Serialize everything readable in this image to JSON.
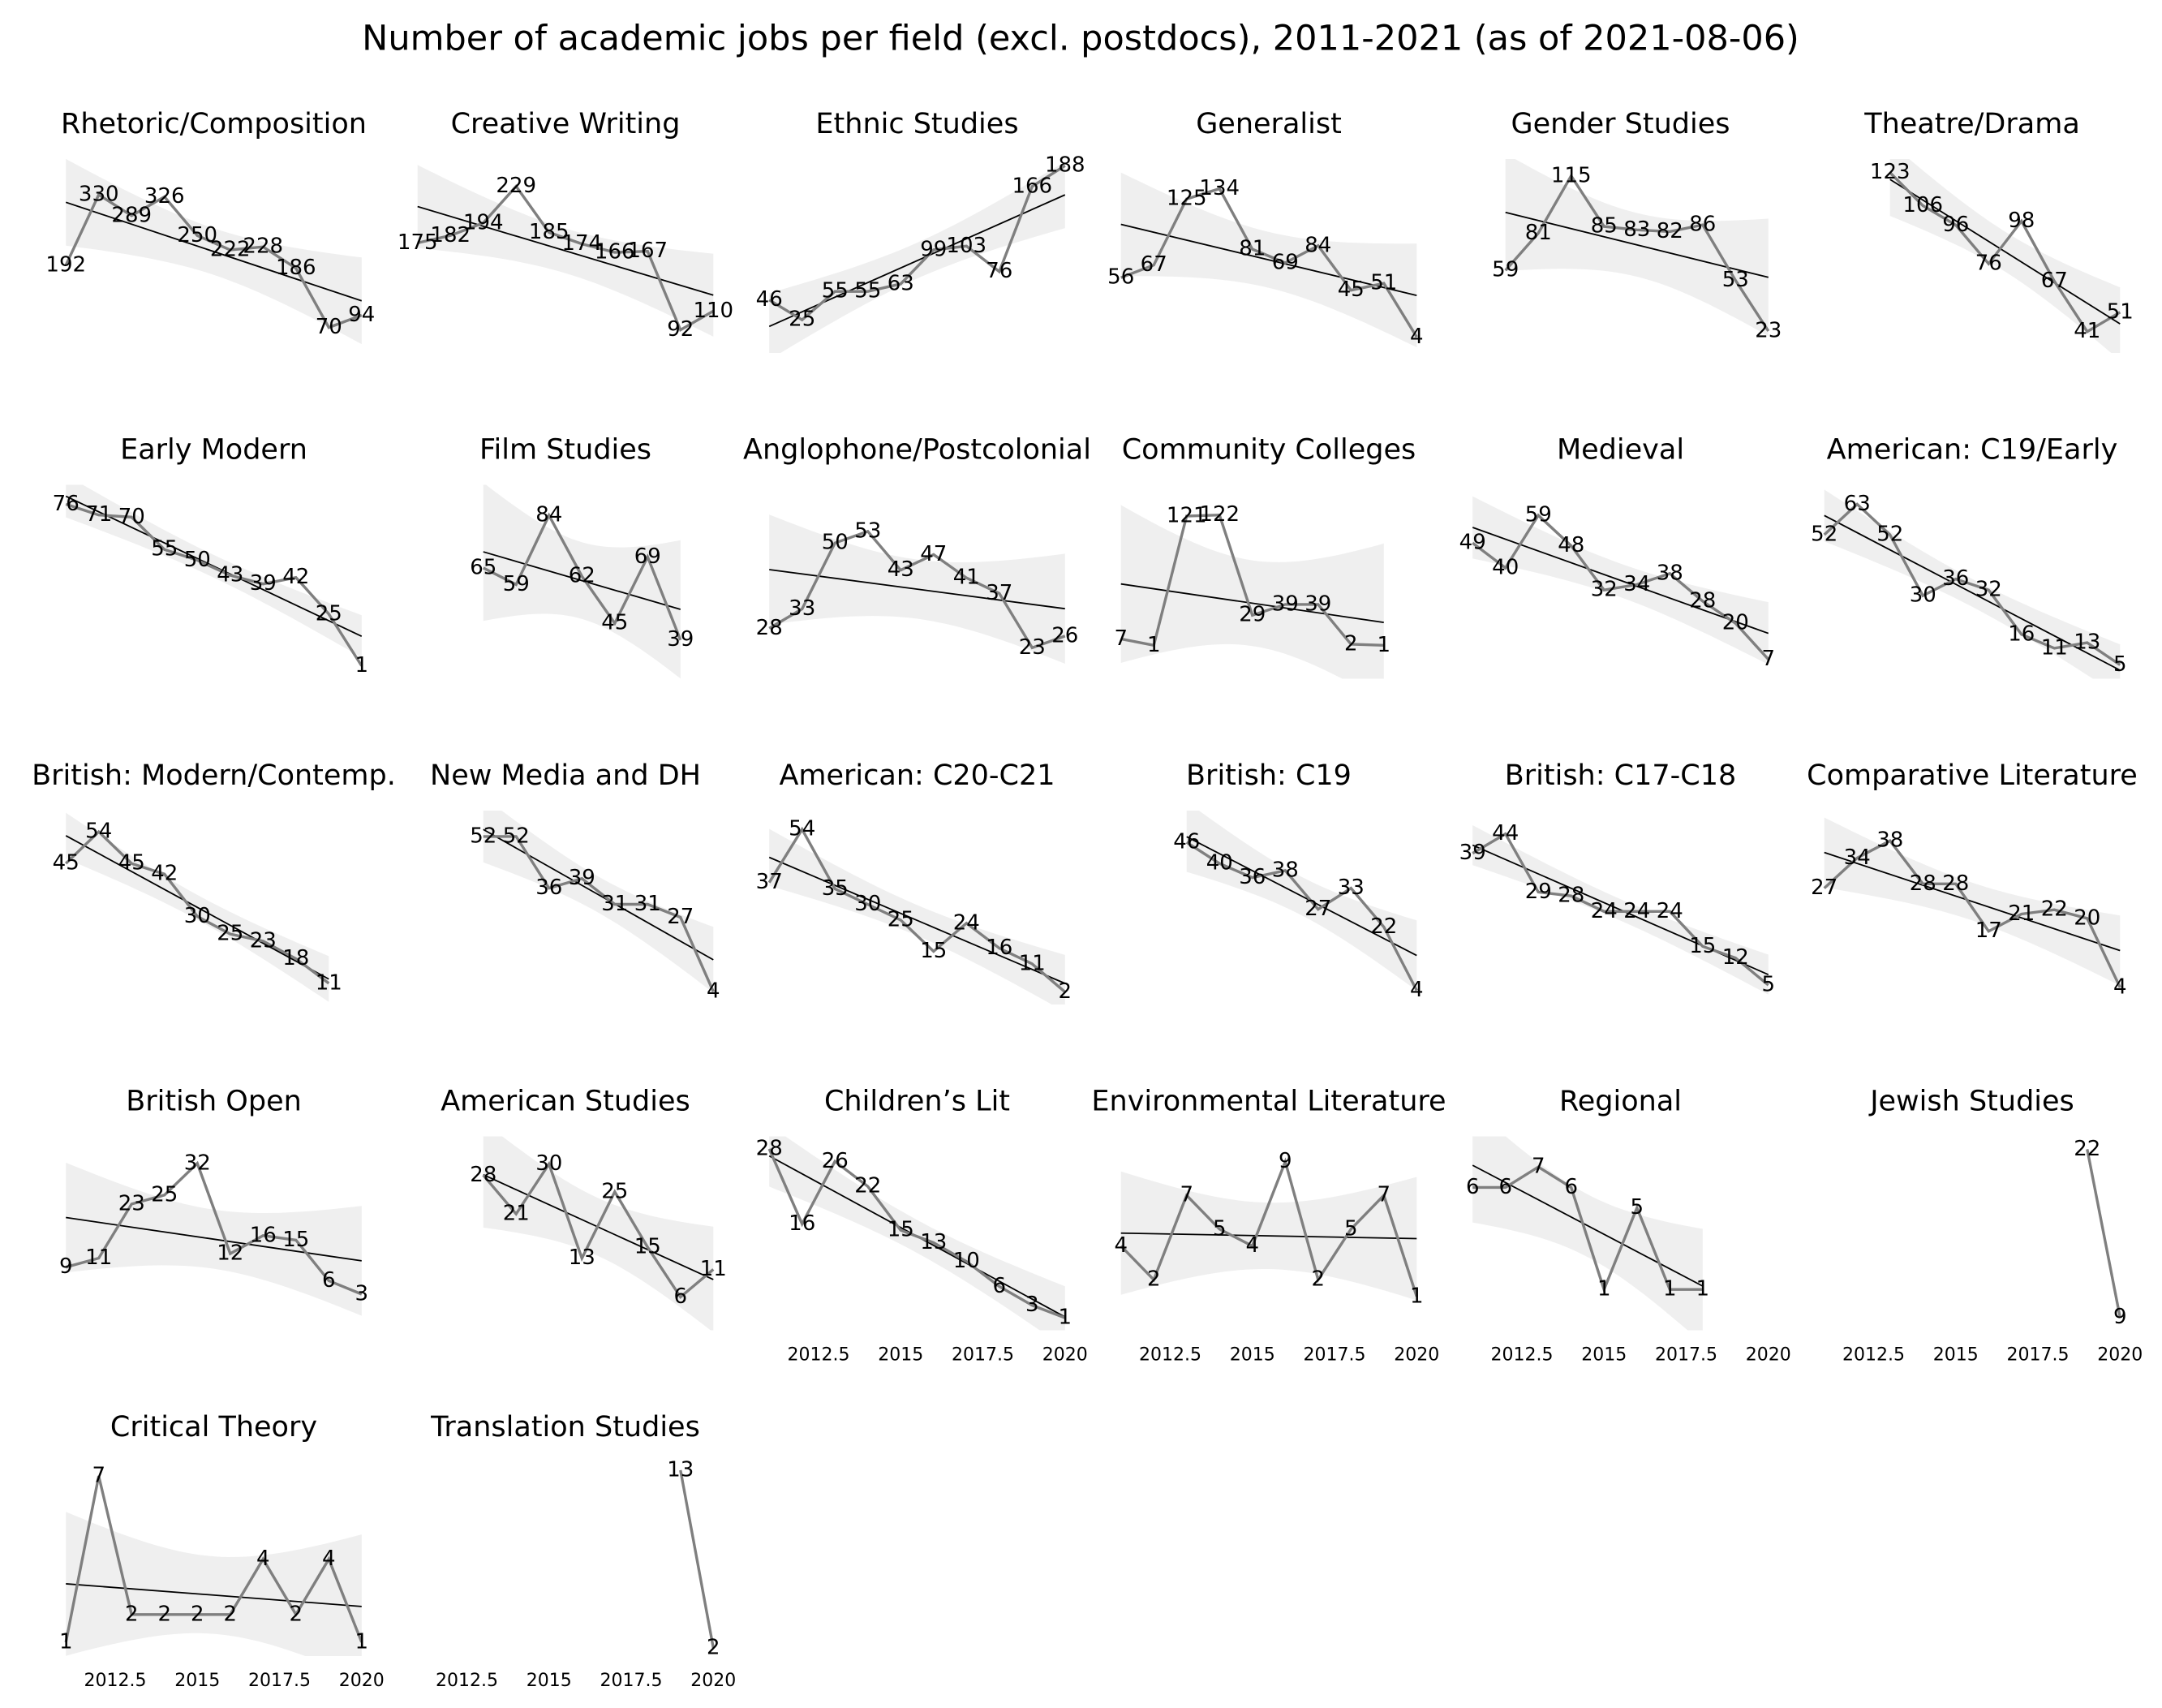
{
  "title": "Number of academic jobs per field (excl. postdocs), 2011-2021 (as of 2021-08-06)",
  "chart_data": [
    {
      "type": "line",
      "title": "Rhetoric/Composition",
      "x": [
        2011,
        2012,
        2013,
        2014,
        2015,
        2016,
        2017,
        2018,
        2019,
        2020
      ],
      "values": [
        192,
        330,
        289,
        326,
        250,
        222,
        228,
        186,
        70,
        94
      ],
      "xlim": [
        2010.55,
        2020.45
      ],
      "ylim": [
        20,
        400
      ],
      "color": "#7f7f7f",
      "fit": true
    },
    {
      "type": "line",
      "title": "Creative Writing",
      "x": [
        2011,
        2012,
        2013,
        2014,
        2015,
        2016,
        2017,
        2018,
        2019,
        2020
      ],
      "values": [
        175,
        182,
        194,
        229,
        185,
        174,
        166,
        167,
        92,
        110
      ],
      "xlim": [
        2010.55,
        2020.45
      ],
      "ylim": [
        70,
        255
      ],
      "color": "#7f7f7f",
      "fit": true
    },
    {
      "type": "line",
      "title": "Ethnic Studies",
      "x": [
        2011,
        2012,
        2013,
        2014,
        2015,
        2016,
        2017,
        2018,
        2019,
        2020
      ],
      "values": [
        46,
        25,
        55,
        55,
        63,
        99,
        103,
        76,
        166,
        188
      ],
      "xlim": [
        2010.55,
        2020.45
      ],
      "ylim": [
        -10,
        195
      ],
      "color": "#7f7f7f",
      "fit": true
    },
    {
      "type": "line",
      "title": "Generalist",
      "x": [
        2011,
        2012,
        2013,
        2014,
        2015,
        2016,
        2017,
        2018,
        2019,
        2020
      ],
      "values": [
        56,
        67,
        125,
        134,
        81,
        69,
        84,
        45,
        51,
        4
      ],
      "xlim": [
        2010.55,
        2020.45
      ],
      "ylim": [
        -10,
        160
      ],
      "color": "#7f7f7f",
      "fit": true
    },
    {
      "type": "line",
      "title": "Gender Studies",
      "x": [
        2012,
        2013,
        2014,
        2015,
        2016,
        2017,
        2018,
        2019,
        2020
      ],
      "values": [
        59,
        81,
        115,
        85,
        83,
        82,
        86,
        53,
        23
      ],
      "xlim": [
        2010.55,
        2020.45
      ],
      "ylim": [
        10,
        125
      ],
      "color": "#7f7f7f",
      "fit": true
    },
    {
      "type": "line",
      "title": "Theatre/Drama",
      "x": [
        2013,
        2014,
        2015,
        2016,
        2017,
        2018,
        2019,
        2020
      ],
      "values": [
        123,
        106,
        96,
        76,
        98,
        67,
        41,
        51
      ],
      "xlim": [
        2010.55,
        2020.45
      ],
      "ylim": [
        30,
        130
      ],
      "color": "#7f7f7f",
      "fit": true
    },
    {
      "type": "line",
      "title": "Early Modern",
      "x": [
        2011,
        2012,
        2013,
        2014,
        2015,
        2016,
        2017,
        2018,
        2019,
        2020
      ],
      "values": [
        76,
        71,
        70,
        55,
        50,
        43,
        39,
        42,
        25,
        1
      ],
      "xlim": [
        2010.55,
        2020.45
      ],
      "ylim": [
        -5,
        85
      ],
      "color": "#7f7f7f",
      "fit": true
    },
    {
      "type": "line",
      "title": "Film Studies",
      "x": [
        2013,
        2014,
        2015,
        2016,
        2017,
        2018,
        2019
      ],
      "values": [
        65,
        59,
        84,
        62,
        45,
        69,
        39
      ],
      "xlim": [
        2010.55,
        2020.45
      ],
      "ylim": [
        25,
        95
      ],
      "color": "#7f7f7f",
      "fit": true
    },
    {
      "type": "line",
      "title": "Anglophone/Postcolonial",
      "x": [
        2011,
        2012,
        2013,
        2014,
        2015,
        2016,
        2017,
        2018,
        2019,
        2020
      ],
      "values": [
        28,
        33,
        50,
        53,
        43,
        47,
        41,
        37,
        23,
        26
      ],
      "xlim": [
        2010.55,
        2020.45
      ],
      "ylim": [
        15,
        65
      ],
      "color": "#7f7f7f",
      "fit": true
    },
    {
      "type": "line",
      "title": "Community Colleges",
      "x": [
        2011,
        2012,
        2013,
        2014,
        2015,
        2016,
        2017,
        2018,
        2019
      ],
      "values": [
        7,
        1,
        121,
        122,
        29,
        39,
        39,
        2,
        1
      ],
      "xlim": [
        2010.55,
        2020.45
      ],
      "ylim": [
        -30,
        150
      ],
      "color": "#7f7f7f",
      "fit": true
    },
    {
      "type": "line",
      "title": "Medieval",
      "x": [
        2011,
        2012,
        2013,
        2014,
        2015,
        2016,
        2017,
        2018,
        2019,
        2020
      ],
      "values": [
        49,
        40,
        59,
        48,
        32,
        34,
        38,
        28,
        20,
        7
      ],
      "xlim": [
        2010.55,
        2020.45
      ],
      "ylim": [
        0,
        70
      ],
      "color": "#7f7f7f",
      "fit": true
    },
    {
      "type": "line",
      "title": "American: C19/Early",
      "x": [
        2011,
        2012,
        2013,
        2014,
        2015,
        2016,
        2017,
        2018,
        2019,
        2020
      ],
      "values": [
        52,
        63,
        52,
        30,
        36,
        32,
        16,
        11,
        13,
        5
      ],
      "xlim": [
        2010.55,
        2020.45
      ],
      "ylim": [
        0,
        70
      ],
      "color": "#7f7f7f",
      "fit": true
    },
    {
      "type": "line",
      "title": "British: Modern/Contemp.",
      "x": [
        2011,
        2012,
        2013,
        2014,
        2015,
        2016,
        2017,
        2018,
        2019
      ],
      "values": [
        45,
        54,
        45,
        42,
        30,
        25,
        23,
        18,
        11
      ],
      "xlim": [
        2010.55,
        2020.45
      ],
      "ylim": [
        5,
        60
      ],
      "color": "#7f7f7f",
      "fit": true
    },
    {
      "type": "line",
      "title": "New Media and DH",
      "x": [
        2013,
        2014,
        2015,
        2016,
        2017,
        2018,
        2019,
        2020
      ],
      "values": [
        52,
        52,
        36,
        39,
        31,
        31,
        27,
        4
      ],
      "xlim": [
        2010.55,
        2020.45
      ],
      "ylim": [
        0,
        60
      ],
      "color": "#7f7f7f",
      "fit": true
    },
    {
      "type": "line",
      "title": "American: C20-C21",
      "x": [
        2011,
        2012,
        2013,
        2014,
        2015,
        2016,
        2017,
        2018,
        2019,
        2020
      ],
      "values": [
        37,
        54,
        35,
        30,
        25,
        15,
        24,
        16,
        11,
        2
      ],
      "xlim": [
        2010.55,
        2020.45
      ],
      "ylim": [
        -2,
        60
      ],
      "color": "#7f7f7f",
      "fit": true
    },
    {
      "type": "line",
      "title": "British: C19",
      "x": [
        2013,
        2014,
        2015,
        2016,
        2017,
        2018,
        2019,
        2020
      ],
      "values": [
        46,
        40,
        36,
        38,
        27,
        33,
        22,
        4
      ],
      "xlim": [
        2010.55,
        2020.45
      ],
      "ylim": [
        0,
        55
      ],
      "color": "#7f7f7f",
      "fit": true
    },
    {
      "type": "line",
      "title": "British: C17-C18",
      "x": [
        2011,
        2012,
        2013,
        2014,
        2015,
        2016,
        2017,
        2018,
        2019,
        2020
      ],
      "values": [
        39,
        44,
        29,
        28,
        24,
        24,
        24,
        15,
        12,
        5
      ],
      "xlim": [
        2010.55,
        2020.45
      ],
      "ylim": [
        0,
        50
      ],
      "color": "#7f7f7f",
      "fit": true
    },
    {
      "type": "line",
      "title": "Comparative Literature",
      "x": [
        2011,
        2012,
        2013,
        2014,
        2015,
        2016,
        2017,
        2018,
        2019,
        2020
      ],
      "values": [
        27,
        34,
        38,
        28,
        28,
        17,
        21,
        22,
        20,
        4
      ],
      "xlim": [
        2010.55,
        2020.45
      ],
      "ylim": [
        0,
        45
      ],
      "color": "#7f7f7f",
      "fit": true
    },
    {
      "type": "line",
      "title": "British Open",
      "x": [
        2011,
        2012,
        2013,
        2014,
        2015,
        2016,
        2017,
        2018,
        2019,
        2020
      ],
      "values": [
        9,
        11,
        23,
        25,
        32,
        12,
        16,
        15,
        6,
        3
      ],
      "xlim": [
        2010.55,
        2020.45
      ],
      "ylim": [
        -5,
        38
      ],
      "color": "#7f7f7f",
      "fit": true
    },
    {
      "type": "line",
      "title": "American Studies",
      "x": [
        2013,
        2014,
        2015,
        2016,
        2017,
        2018,
        2019,
        2020
      ],
      "values": [
        28,
        21,
        30,
        13,
        25,
        15,
        6,
        11
      ],
      "xlim": [
        2010.55,
        2020.45
      ],
      "ylim": [
        0,
        35
      ],
      "color": "#7f7f7f",
      "fit": true
    },
    {
      "type": "line",
      "title": "Children’s Lit",
      "x": [
        2011,
        2012,
        2013,
        2014,
        2015,
        2016,
        2017,
        2018,
        2019,
        2020
      ],
      "values": [
        28,
        16,
        26,
        22,
        15,
        13,
        10,
        6,
        3,
        1
      ],
      "xlim": [
        2010.55,
        2020.45
      ],
      "ylim": [
        -1,
        30
      ],
      "xticks": [
        2012.5,
        2015,
        2017.5,
        2020
      ],
      "color": "#7f7f7f",
      "fit": true
    },
    {
      "type": "line",
      "title": "Environmental Literature",
      "x": [
        2011,
        2012,
        2013,
        2014,
        2015,
        2016,
        2017,
        2018,
        2019,
        2020
      ],
      "values": [
        4,
        2,
        7,
        5,
        4,
        9,
        2,
        5,
        7,
        1
      ],
      "xlim": [
        2010.55,
        2020.45
      ],
      "ylim": [
        -1,
        10.5
      ],
      "xticks": [
        2012.5,
        2015,
        2017.5,
        2020
      ],
      "color": "#7f7f7f",
      "fit": true
    },
    {
      "type": "line",
      "title": "Regional",
      "x": [
        2011,
        2012,
        2013,
        2014,
        2015,
        2016,
        2017,
        2018
      ],
      "values": [
        6,
        6,
        7,
        6,
        1,
        5,
        1,
        1
      ],
      "xlim": [
        2010.55,
        2020.45
      ],
      "ylim": [
        -1,
        8.5
      ],
      "xticks": [
        2012.5,
        2015,
        2017.5,
        2020
      ],
      "color": "#7f7f7f",
      "fit": true
    },
    {
      "type": "line",
      "title": "Jewish Studies",
      "x": [
        2019,
        2020
      ],
      "values": [
        22,
        9
      ],
      "xlim": [
        2010.55,
        2020.45
      ],
      "ylim": [
        8,
        23
      ],
      "xticks": [
        2012.5,
        2015,
        2017.5,
        2020
      ],
      "color": "#7f7f7f",
      "fit": true
    },
    {
      "type": "line",
      "title": "Critical Theory",
      "x": [
        2011,
        2012,
        2013,
        2014,
        2015,
        2016,
        2017,
        2018,
        2019,
        2020
      ],
      "values": [
        1,
        7,
        2,
        2,
        2,
        2,
        4,
        2,
        4,
        1
      ],
      "xlim": [
        2010.55,
        2020.45
      ],
      "ylim": [
        0.5,
        7.5
      ],
      "xticks": [
        2012.5,
        2015,
        2017.5,
        2020
      ],
      "color": "#7f7f7f",
      "fit": true
    },
    {
      "type": "line",
      "title": "Translation Studies",
      "x": [
        2019,
        2020
      ],
      "values": [
        13,
        2
      ],
      "xlim": [
        2010.55,
        2020.45
      ],
      "ylim": [
        1.5,
        13.5
      ],
      "xticks": [
        2012.5,
        2015,
        2017.5,
        2020
      ],
      "color": "#7f7f7f",
      "fit": true
    }
  ]
}
